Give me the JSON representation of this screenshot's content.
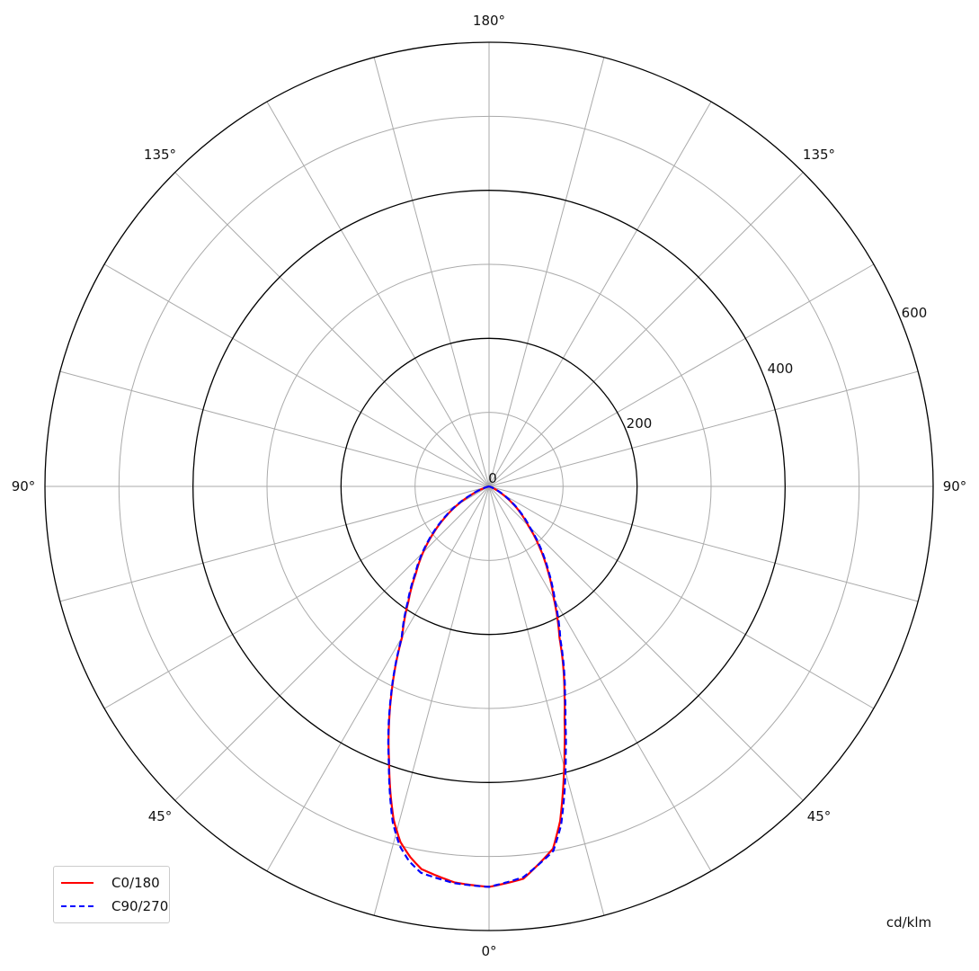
{
  "chart_data": {
    "type": "polar",
    "unit_label": "cd/klm",
    "radial_ticks": [
      "0",
      "200",
      "400",
      "600"
    ],
    "rlim": [
      0,
      600
    ],
    "radial_grid": [
      100,
      200,
      300,
      400,
      500,
      600
    ],
    "angle_labels": {
      "bottom": "0°",
      "lower_left": "45°",
      "left": "90°",
      "upper_left": "135°",
      "top": "180°",
      "upper_right": "135°",
      "right": "90°",
      "lower_right": "45°"
    },
    "angle_grid_step_deg": 15,
    "gamma": [
      0,
      5,
      10,
      12,
      14,
      16,
      18,
      20,
      25,
      30,
      35,
      40,
      45,
      50,
      55,
      60,
      65,
      70,
      75,
      80,
      90,
      180
    ],
    "series": [
      {
        "name": "C0/180",
        "color": "#ff0000",
        "style": "solid",
        "left_values": [
          541,
          537,
          525,
          512,
          495,
          468,
          432,
          395,
          313,
          235,
          190,
          154,
          126,
          98,
          72,
          48,
          25,
          10,
          2,
          0,
          0,
          0
        ],
        "right_values": [
          541,
          532,
          497,
          462,
          415,
          370,
          330,
          298,
          225,
          175,
          138,
          105,
          75,
          55,
          36,
          20,
          9,
          3,
          0,
          0,
          0,
          0
        ]
      },
      {
        "name": "C90/270",
        "color": "#0000ff",
        "style": "dashed",
        "left_values": [
          541,
          538,
          530,
          518,
          500,
          472,
          434,
          396,
          314,
          236,
          192,
          156,
          128,
          100,
          74,
          50,
          27,
          11,
          2,
          0,
          0,
          0
        ],
        "right_values": [
          541,
          530,
          500,
          468,
          422,
          376,
          334,
          300,
          228,
          178,
          140,
          108,
          78,
          57,
          38,
          22,
          10,
          3,
          0,
          0,
          0,
          0
        ]
      }
    ],
    "legend_position": "bottom-left"
  }
}
